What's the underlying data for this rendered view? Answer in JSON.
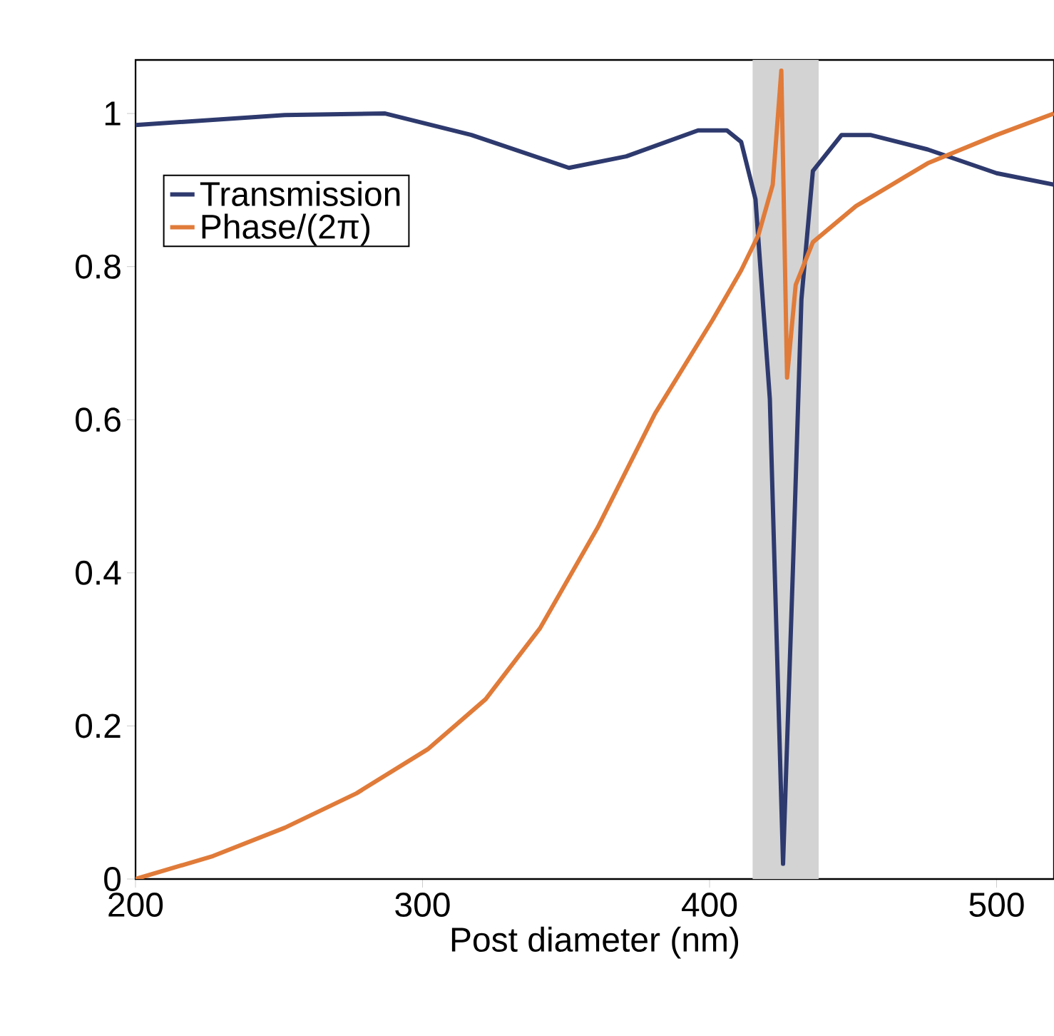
{
  "chart_data": {
    "type": "line",
    "xlabel": "Post diameter (nm)",
    "xlim": [
      200,
      520
    ],
    "ylim": [
      0,
      1.07
    ],
    "xticks": [
      200,
      300,
      400,
      500
    ],
    "yticks": [
      0,
      0.2,
      0.4,
      0.6,
      0.8,
      1
    ],
    "legend": "top left",
    "grid": false,
    "line_style": "solid",
    "marker": "none",
    "bands": [
      {
        "axis": "x",
        "from": 415,
        "to": 438,
        "color": "#d3d3d3"
      }
    ],
    "series": [
      {
        "name": "Transmission",
        "color": "#2e3a6e",
        "x": [
          200,
          252,
          287,
          317,
          351,
          371,
          396,
          406,
          411,
          416,
          421,
          425.6,
          429,
          432,
          436,
          446,
          456,
          476,
          500,
          520
        ],
        "values": [
          0.985,
          0.998,
          1.0,
          0.972,
          0.929,
          0.944,
          0.978,
          0.978,
          0.963,
          0.888,
          0.627,
          0.02,
          0.4,
          0.757,
          0.925,
          0.972,
          0.972,
          0.953,
          0.922,
          0.907
        ]
      },
      {
        "name": "Phase/(2π)",
        "color": "#e07b39",
        "x": [
          200,
          227,
          252,
          277,
          302,
          322,
          341,
          361,
          381,
          401,
          411,
          417,
          422,
          425,
          427,
          430,
          436,
          451,
          476,
          500,
          520
        ],
        "values": [
          0,
          0.03,
          0.067,
          0.112,
          0.17,
          0.235,
          0.328,
          0.459,
          0.608,
          0.73,
          0.795,
          0.841,
          0.907,
          1.056,
          0.655,
          0.776,
          0.832,
          0.879,
          0.935,
          0.972,
          1.0
        ]
      }
    ]
  }
}
